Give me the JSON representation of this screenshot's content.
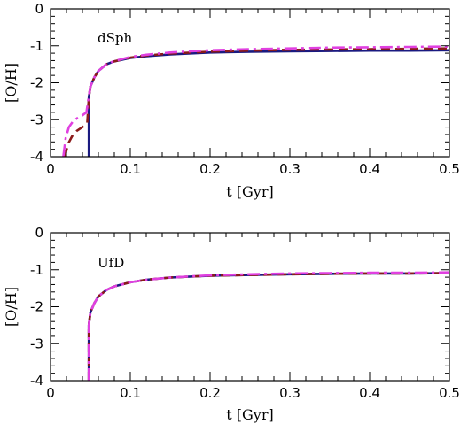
{
  "chart_data": [
    {
      "type": "line",
      "annotation": "dSph",
      "xlabel": "t [Gyr]",
      "ylabel": "[O/H]",
      "xlim": [
        0,
        0.5
      ],
      "ylim": [
        -4,
        0
      ],
      "xticks": [
        "0",
        "0.1",
        "0.2",
        "0.3",
        "0.4",
        "0.5"
      ],
      "yticks": [
        "0",
        "-1",
        "-2",
        "-3",
        "-4"
      ],
      "grid": false,
      "series": [
        {
          "color": "#1a1a80",
          "style": "solid",
          "width": 2.6,
          "x": [
            0.048,
            0.048,
            0.05,
            0.055,
            0.06,
            0.07,
            0.08,
            0.1,
            0.12,
            0.15,
            0.2,
            0.25,
            0.3,
            0.35,
            0.4,
            0.45,
            0.5
          ],
          "y": [
            -4.0,
            -2.4,
            -2.1,
            -1.85,
            -1.68,
            -1.5,
            -1.42,
            -1.33,
            -1.28,
            -1.23,
            -1.18,
            -1.16,
            -1.15,
            -1.14,
            -1.13,
            -1.13,
            -1.12
          ]
        },
        {
          "color": "#8b1a1a",
          "style": "dashed",
          "width": 2.6,
          "x": [
            0.018,
            0.022,
            0.027,
            0.033,
            0.04,
            0.046,
            0.048,
            0.05,
            0.055,
            0.06,
            0.07,
            0.08,
            0.1,
            0.12,
            0.15,
            0.2,
            0.25,
            0.3,
            0.35,
            0.4,
            0.45,
            0.5
          ],
          "y": [
            -4.0,
            -3.65,
            -3.45,
            -3.3,
            -3.2,
            -3.1,
            -2.4,
            -2.1,
            -1.85,
            -1.68,
            -1.5,
            -1.42,
            -1.32,
            -1.26,
            -1.21,
            -1.16,
            -1.13,
            -1.11,
            -1.1,
            -1.09,
            -1.08,
            -1.07
          ]
        },
        {
          "color": "#e040e0",
          "style": "dashdot",
          "width": 2.6,
          "x": [
            0.016,
            0.019,
            0.023,
            0.028,
            0.034,
            0.04,
            0.045,
            0.047,
            0.05,
            0.055,
            0.06,
            0.07,
            0.08,
            0.1,
            0.12,
            0.15,
            0.2,
            0.25,
            0.3,
            0.35,
            0.4,
            0.45,
            0.5
          ],
          "y": [
            -4.0,
            -3.5,
            -3.2,
            -3.05,
            -2.95,
            -2.88,
            -2.8,
            -2.5,
            -2.1,
            -1.85,
            -1.68,
            -1.5,
            -1.41,
            -1.3,
            -1.24,
            -1.18,
            -1.12,
            -1.09,
            -1.07,
            -1.05,
            -1.04,
            -1.03,
            -1.02
          ]
        }
      ]
    },
    {
      "type": "line",
      "annotation": "UfD",
      "xlabel": "t [Gyr]",
      "ylabel": "[O/H]",
      "xlim": [
        0,
        0.5
      ],
      "ylim": [
        -4,
        0
      ],
      "xticks": [
        "0",
        "0.1",
        "0.2",
        "0.3",
        "0.4",
        "0.5"
      ],
      "yticks": [
        "0",
        "-1",
        "-2",
        "-3",
        "-4"
      ],
      "grid": false,
      "series": [
        {
          "color": "#1a1a80",
          "style": "solid",
          "width": 2.6,
          "x": [
            0.048,
            0.048,
            0.05,
            0.055,
            0.06,
            0.07,
            0.08,
            0.1,
            0.12,
            0.15,
            0.2,
            0.25,
            0.3,
            0.35,
            0.4,
            0.45,
            0.5
          ],
          "y": [
            -4.0,
            -2.5,
            -2.15,
            -1.9,
            -1.72,
            -1.55,
            -1.45,
            -1.34,
            -1.27,
            -1.21,
            -1.16,
            -1.14,
            -1.12,
            -1.11,
            -1.1,
            -1.1,
            -1.09
          ]
        },
        {
          "color": "#8b1a1a",
          "style": "dashed",
          "width": 2.6,
          "x": [
            0.048,
            0.048,
            0.05,
            0.055,
            0.06,
            0.07,
            0.08,
            0.1,
            0.12,
            0.15,
            0.2,
            0.25,
            0.3,
            0.35,
            0.4,
            0.45,
            0.5
          ],
          "y": [
            -4.0,
            -2.5,
            -2.15,
            -1.9,
            -1.72,
            -1.55,
            -1.45,
            -1.34,
            -1.27,
            -1.21,
            -1.16,
            -1.14,
            -1.12,
            -1.11,
            -1.1,
            -1.1,
            -1.09
          ]
        },
        {
          "color": "#e040e0",
          "style": "dashdot",
          "width": 2.6,
          "x": [
            0.048,
            0.048,
            0.05,
            0.055,
            0.06,
            0.07,
            0.08,
            0.1,
            0.12,
            0.15,
            0.2,
            0.25,
            0.3,
            0.35,
            0.4,
            0.45,
            0.5
          ],
          "y": [
            -4.0,
            -2.5,
            -2.15,
            -1.9,
            -1.72,
            -1.55,
            -1.45,
            -1.34,
            -1.27,
            -1.21,
            -1.15,
            -1.12,
            -1.1,
            -1.09,
            -1.08,
            -1.08,
            -1.07
          ]
        }
      ]
    }
  ]
}
